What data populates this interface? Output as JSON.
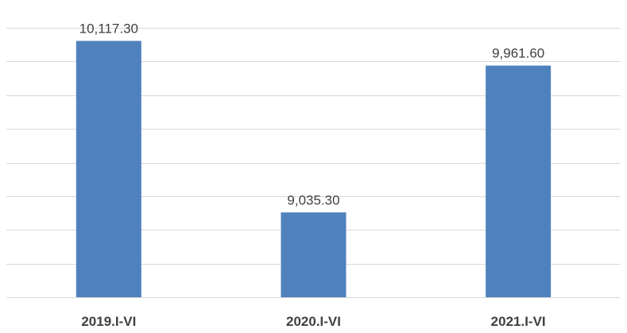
{
  "chart_data": {
    "type": "bar",
    "categories": [
      "2019.I-VI",
      "2020.I-VI",
      "2021.I-VI"
    ],
    "values": [
      10117.3,
      9035.3,
      9961.6
    ],
    "value_labels": [
      "10,117.30",
      "9,035.30",
      "9,961.60"
    ],
    "title": "",
    "xlabel": "",
    "ylabel": "",
    "ylim": [
      8500,
      10200
    ],
    "grid": true,
    "legend": "none",
    "colors": {
      "bar": "#4f81bd",
      "gridline": "#d9d9d9",
      "text": "#404040"
    }
  }
}
